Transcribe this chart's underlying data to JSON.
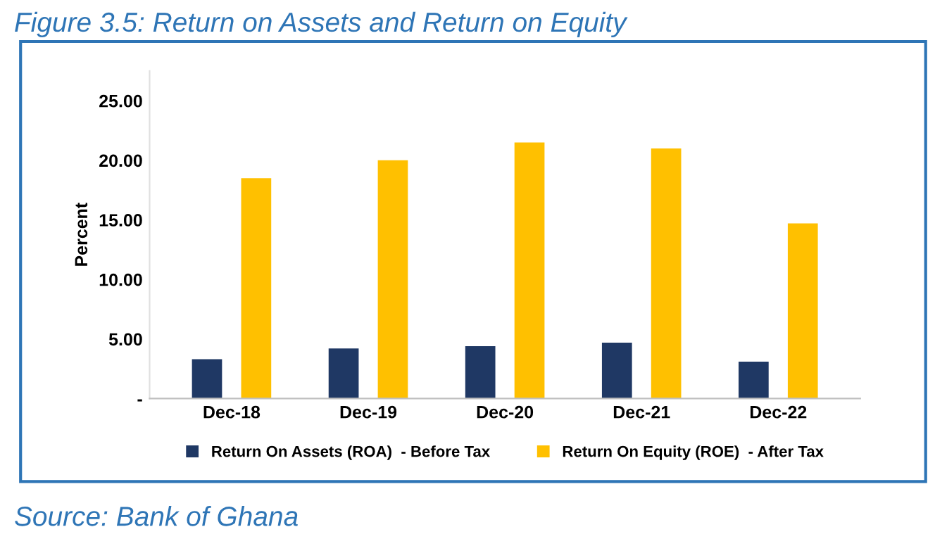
{
  "chart_data": {
    "type": "bar",
    "title": "Figure 3.5: Return on Assets and Return on Equity",
    "ylabel": "Percent",
    "categories": [
      "Dec-18",
      "Dec-19",
      "Dec-20",
      "Dec-21",
      "Dec-22"
    ],
    "series": [
      {
        "name": "Return On Assets (ROA)  - Before Tax",
        "color": "#1f3864",
        "values": [
          3.3,
          4.2,
          4.4,
          4.7,
          3.1
        ]
      },
      {
        "name": "Return On Equity (ROE)  - After Tax",
        "color": "#ffc000",
        "values": [
          18.5,
          20.0,
          21.5,
          21.0,
          14.7
        ]
      }
    ],
    "ylim": [
      0,
      27.5
    ],
    "yticks": [
      {
        "value": 0,
        "label": "-"
      },
      {
        "value": 5,
        "label": "5.00"
      },
      {
        "value": 10,
        "label": "10.00"
      },
      {
        "value": 15,
        "label": "15.00"
      },
      {
        "value": 20,
        "label": "20.00"
      },
      {
        "value": 25,
        "label": "25.00"
      }
    ],
    "grid": false,
    "legend": "bottom",
    "annotations": [
      "Source: Bank of Ghana"
    ]
  }
}
